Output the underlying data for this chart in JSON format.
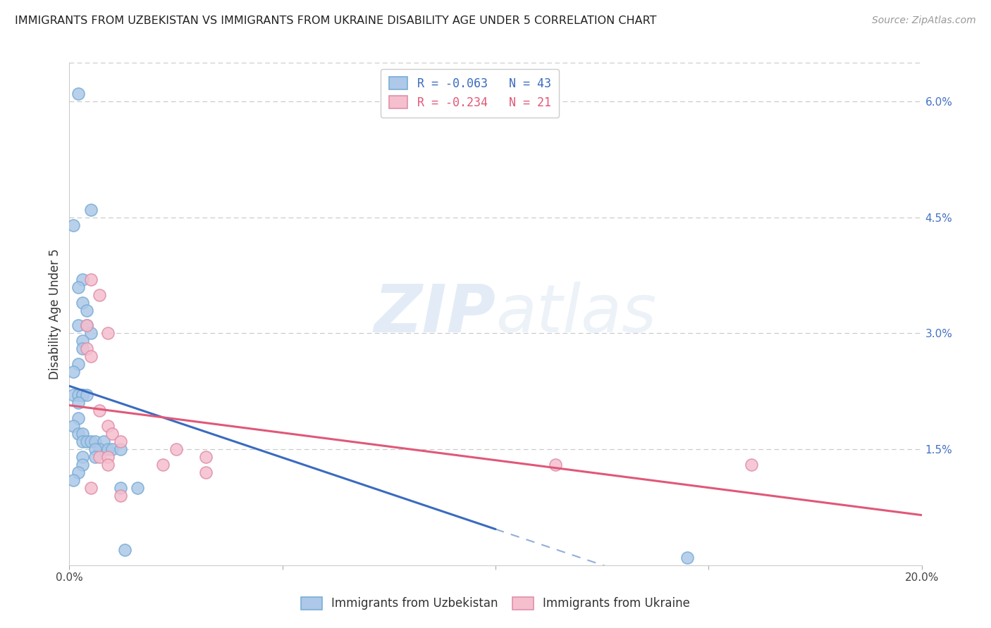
{
  "title": "IMMIGRANTS FROM UZBEKISTAN VS IMMIGRANTS FROM UKRAINE DISABILITY AGE UNDER 5 CORRELATION CHART",
  "source": "Source: ZipAtlas.com",
  "ylabel": "Disability Age Under 5",
  "watermark_zip": "ZIP",
  "watermark_atlas": "atlas",
  "legend_blue_text": "R = -0.063   N = 43",
  "legend_pink_text": "R = -0.234   N = 21",
  "legend_label_blue": "Immigrants from Uzbekistan",
  "legend_label_pink": "Immigrants from Ukraine",
  "xlim": [
    0.0,
    0.2
  ],
  "ylim": [
    0.0,
    0.065
  ],
  "xticks": [
    0.0,
    0.05,
    0.1,
    0.15,
    0.2
  ],
  "yticks_right": [
    0.0,
    0.015,
    0.03,
    0.045,
    0.06
  ],
  "ytick_labels_right": [
    "",
    "1.5%",
    "3.0%",
    "4.5%",
    "6.0%"
  ],
  "blue_scatter_x": [
    0.002,
    0.005,
    0.001,
    0.003,
    0.002,
    0.003,
    0.004,
    0.002,
    0.004,
    0.005,
    0.003,
    0.003,
    0.002,
    0.001,
    0.001,
    0.002,
    0.003,
    0.003,
    0.004,
    0.002,
    0.002,
    0.001,
    0.002,
    0.003,
    0.003,
    0.004,
    0.005,
    0.006,
    0.008,
    0.007,
    0.006,
    0.009,
    0.01,
    0.012,
    0.006,
    0.003,
    0.003,
    0.002,
    0.001,
    0.012,
    0.016,
    0.013,
    0.145
  ],
  "blue_scatter_y": [
    0.061,
    0.046,
    0.044,
    0.037,
    0.036,
    0.034,
    0.033,
    0.031,
    0.031,
    0.03,
    0.029,
    0.028,
    0.026,
    0.025,
    0.022,
    0.022,
    0.022,
    0.022,
    0.022,
    0.021,
    0.019,
    0.018,
    0.017,
    0.017,
    0.016,
    0.016,
    0.016,
    0.016,
    0.016,
    0.015,
    0.015,
    0.015,
    0.015,
    0.015,
    0.014,
    0.014,
    0.013,
    0.012,
    0.011,
    0.01,
    0.01,
    0.002,
    0.001
  ],
  "pink_scatter_x": [
    0.005,
    0.007,
    0.004,
    0.009,
    0.004,
    0.005,
    0.007,
    0.009,
    0.01,
    0.012,
    0.007,
    0.009,
    0.009,
    0.025,
    0.022,
    0.032,
    0.032,
    0.114,
    0.16,
    0.012,
    0.005
  ],
  "pink_scatter_y": [
    0.037,
    0.035,
    0.031,
    0.03,
    0.028,
    0.027,
    0.02,
    0.018,
    0.017,
    0.016,
    0.014,
    0.014,
    0.013,
    0.015,
    0.013,
    0.014,
    0.012,
    0.013,
    0.013,
    0.009,
    0.01
  ],
  "blue_color": "#adc8e8",
  "pink_color": "#f5bfce",
  "blue_line_color": "#3a6bbf",
  "pink_line_color": "#e05878",
  "blue_edge_color": "#7aaed6",
  "pink_edge_color": "#e090aa",
  "background_color": "#ffffff",
  "grid_color": "#c8c8c8"
}
